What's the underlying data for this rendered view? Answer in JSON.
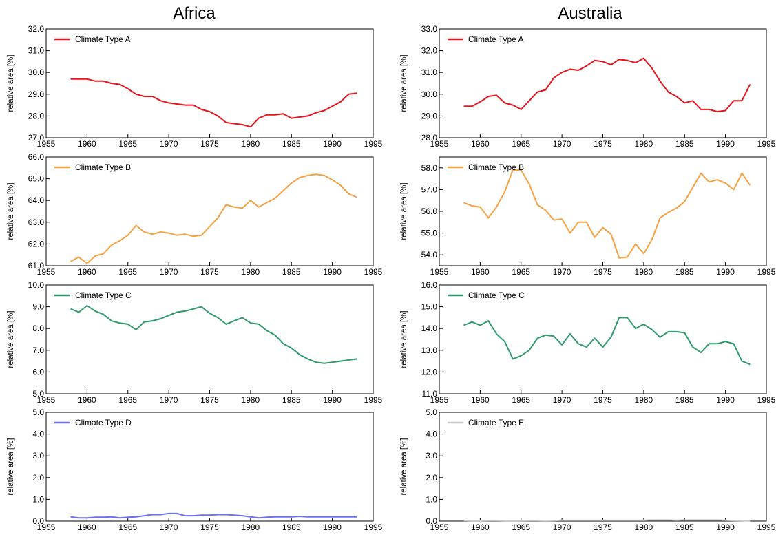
{
  "columns": [
    "Africa",
    "Australia"
  ],
  "chart_data": [
    {
      "type": "line",
      "column": 0,
      "row": 0,
      "ylabel": "relative area [%]",
      "xlim": [
        1955,
        1995
      ],
      "ylim": [
        27.0,
        32.0
      ],
      "xticks": [
        1955,
        1960,
        1965,
        1970,
        1975,
        1980,
        1985,
        1990,
        1995
      ],
      "yticks": [
        27.0,
        28.0,
        29.0,
        30.0,
        31.0,
        32.0
      ],
      "series": [
        {
          "name": "Climate Type A",
          "color": "#e8141c",
          "x": [
            1958,
            1959,
            1960,
            1961,
            1962,
            1963,
            1964,
            1965,
            1966,
            1967,
            1968,
            1969,
            1970,
            1971,
            1972,
            1973,
            1974,
            1975,
            1976,
            1977,
            1978,
            1979,
            1980,
            1981,
            1982,
            1983,
            1984,
            1985,
            1986,
            1987,
            1988,
            1989,
            1990,
            1991,
            1992,
            1993
          ],
          "y": [
            29.7,
            29.7,
            29.7,
            29.6,
            29.6,
            29.5,
            29.45,
            29.25,
            29.0,
            28.9,
            28.9,
            28.7,
            28.6,
            28.55,
            28.5,
            28.5,
            28.3,
            28.2,
            28.0,
            27.7,
            27.65,
            27.6,
            27.5,
            27.9,
            28.05,
            28.05,
            28.1,
            27.9,
            27.95,
            28.0,
            28.15,
            28.25,
            28.45,
            28.65,
            29.0,
            29.05
          ]
        }
      ]
    },
    {
      "type": "line",
      "column": 1,
      "row": 0,
      "ylabel": "relative area [%]",
      "xlim": [
        1955,
        1995
      ],
      "ylim": [
        28.0,
        33.0
      ],
      "xticks": [
        1955,
        1960,
        1965,
        1970,
        1975,
        1980,
        1985,
        1990,
        1995
      ],
      "yticks": [
        28.0,
        29.0,
        30.0,
        31.0,
        32.0,
        33.0
      ],
      "series": [
        {
          "name": "Climate Type A",
          "color": "#e8141c",
          "x": [
            1958,
            1959,
            1960,
            1961,
            1962,
            1963,
            1964,
            1965,
            1966,
            1967,
            1968,
            1969,
            1970,
            1971,
            1972,
            1973,
            1974,
            1975,
            1976,
            1977,
            1978,
            1979,
            1980,
            1981,
            1982,
            1983,
            1984,
            1985,
            1986,
            1987,
            1988,
            1989,
            1990,
            1991,
            1992,
            1993
          ],
          "y": [
            29.45,
            29.45,
            29.65,
            29.9,
            29.95,
            29.6,
            29.5,
            29.3,
            29.7,
            30.1,
            30.2,
            30.75,
            31.0,
            31.15,
            31.1,
            31.3,
            31.55,
            31.5,
            31.35,
            31.6,
            31.55,
            31.45,
            31.65,
            31.2,
            30.6,
            30.1,
            29.9,
            29.6,
            29.7,
            29.3,
            29.3,
            29.2,
            29.25,
            29.7,
            29.7,
            30.45
          ]
        }
      ]
    },
    {
      "type": "line",
      "column": 0,
      "row": 1,
      "ylabel": "relative area [%]",
      "xlim": [
        1955,
        1995
      ],
      "ylim": [
        61.0,
        66.0
      ],
      "xticks": [
        1955,
        1960,
        1965,
        1970,
        1975,
        1980,
        1985,
        1990,
        1995
      ],
      "yticks": [
        61.0,
        62.0,
        63.0,
        64.0,
        65.0,
        66.0
      ],
      "series": [
        {
          "name": "Climate Type B",
          "color": "#f5a142",
          "x": [
            1958,
            1959,
            1960,
            1961,
            1962,
            1963,
            1964,
            1965,
            1966,
            1967,
            1968,
            1969,
            1970,
            1971,
            1972,
            1973,
            1974,
            1975,
            1976,
            1977,
            1978,
            1979,
            1980,
            1981,
            1982,
            1983,
            1984,
            1985,
            1986,
            1987,
            1988,
            1989,
            1990,
            1991,
            1992,
            1993
          ],
          "y": [
            61.2,
            61.4,
            61.1,
            61.45,
            61.55,
            61.95,
            62.15,
            62.4,
            62.85,
            62.55,
            62.45,
            62.55,
            62.5,
            62.4,
            62.45,
            62.35,
            62.4,
            62.8,
            63.2,
            63.8,
            63.7,
            63.65,
            64.0,
            63.7,
            63.9,
            64.1,
            64.45,
            64.8,
            65.05,
            65.15,
            65.2,
            65.15,
            64.95,
            64.7,
            64.3,
            64.15
          ]
        }
      ]
    },
    {
      "type": "line",
      "column": 1,
      "row": 1,
      "ylabel": "relative area [%]",
      "xlim": [
        1955,
        1995
      ],
      "ylim": [
        53.5,
        58.5
      ],
      "xticks": [
        1955,
        1960,
        1965,
        1970,
        1975,
        1980,
        1985,
        1990,
        1995
      ],
      "yticks": [
        54.0,
        55.0,
        56.0,
        57.0,
        58.0
      ],
      "series": [
        {
          "name": "Climate Type B",
          "color": "#f5a142",
          "x": [
            1958,
            1959,
            1960,
            1961,
            1962,
            1963,
            1964,
            1965,
            1966,
            1967,
            1968,
            1969,
            1970,
            1971,
            1972,
            1973,
            1974,
            1975,
            1976,
            1977,
            1978,
            1979,
            1980,
            1981,
            1982,
            1983,
            1984,
            1985,
            1986,
            1987,
            1988,
            1989,
            1990,
            1991,
            1992,
            1993
          ],
          "y": [
            56.4,
            56.25,
            56.2,
            55.7,
            56.2,
            56.9,
            57.9,
            57.9,
            57.25,
            56.3,
            56.05,
            55.6,
            55.65,
            55.0,
            55.5,
            55.5,
            54.8,
            55.25,
            54.95,
            53.85,
            53.9,
            54.5,
            54.05,
            54.7,
            55.7,
            55.95,
            56.15,
            56.45,
            57.1,
            57.75,
            57.35,
            57.45,
            57.3,
            57.0,
            57.75,
            57.2
          ]
        }
      ]
    },
    {
      "type": "line",
      "column": 0,
      "row": 2,
      "ylabel": "relative area [%]",
      "xlim": [
        1955,
        1995
      ],
      "ylim": [
        5.0,
        10.0
      ],
      "xticks": [
        1955,
        1960,
        1965,
        1970,
        1975,
        1980,
        1985,
        1990,
        1995
      ],
      "yticks": [
        5.0,
        6.0,
        7.0,
        8.0,
        9.0,
        10.0
      ],
      "series": [
        {
          "name": "Climate Type C",
          "color": "#2e9a6a",
          "x": [
            1958,
            1959,
            1960,
            1961,
            1962,
            1963,
            1964,
            1965,
            1966,
            1967,
            1968,
            1969,
            1970,
            1971,
            1972,
            1973,
            1974,
            1975,
            1976,
            1977,
            1978,
            1979,
            1980,
            1981,
            1982,
            1983,
            1984,
            1985,
            1986,
            1987,
            1988,
            1989,
            1990,
            1991,
            1992,
            1993
          ],
          "y": [
            8.9,
            8.75,
            9.05,
            8.8,
            8.65,
            8.35,
            8.25,
            8.2,
            7.95,
            8.3,
            8.35,
            8.45,
            8.6,
            8.75,
            8.8,
            8.9,
            9.0,
            8.7,
            8.5,
            8.2,
            8.35,
            8.5,
            8.25,
            8.2,
            7.9,
            7.7,
            7.3,
            7.1,
            6.8,
            6.6,
            6.45,
            6.4,
            6.45,
            6.5,
            6.55,
            6.6
          ]
        }
      ]
    },
    {
      "type": "line",
      "column": 1,
      "row": 2,
      "ylabel": "relative area [%]",
      "xlim": [
        1955,
        1995
      ],
      "ylim": [
        11.0,
        16.0
      ],
      "xticks": [
        1955,
        1960,
        1965,
        1970,
        1975,
        1980,
        1985,
        1990,
        1995
      ],
      "yticks": [
        11.0,
        12.0,
        13.0,
        14.0,
        15.0,
        16.0
      ],
      "series": [
        {
          "name": "Climate Type C",
          "color": "#2e9a6a",
          "x": [
            1958,
            1959,
            1960,
            1961,
            1962,
            1963,
            1964,
            1965,
            1966,
            1967,
            1968,
            1969,
            1970,
            1971,
            1972,
            1973,
            1974,
            1975,
            1976,
            1977,
            1978,
            1979,
            1980,
            1981,
            1982,
            1983,
            1984,
            1985,
            1986,
            1987,
            1988,
            1989,
            1990,
            1991,
            1992,
            1993
          ],
          "y": [
            14.15,
            14.3,
            14.15,
            14.35,
            13.75,
            13.4,
            12.6,
            12.75,
            13.0,
            13.55,
            13.7,
            13.65,
            13.25,
            13.75,
            13.3,
            13.15,
            13.55,
            13.15,
            13.6,
            14.5,
            14.5,
            14.0,
            14.2,
            13.95,
            13.6,
            13.85,
            13.85,
            13.8,
            13.15,
            12.9,
            13.3,
            13.3,
            13.4,
            13.3,
            12.5,
            12.35
          ]
        }
      ]
    },
    {
      "type": "line",
      "column": 0,
      "row": 3,
      "ylabel": "relative area [%]",
      "xlim": [
        1955,
        1995
      ],
      "ylim": [
        0.0,
        5.0
      ],
      "xticks": [
        1955,
        1960,
        1965,
        1970,
        1975,
        1980,
        1985,
        1990,
        1995
      ],
      "yticks": [
        0.0,
        1.0,
        2.0,
        3.0,
        4.0,
        5.0
      ],
      "series": [
        {
          "name": "Climate Type D",
          "color": "#6b6ff0",
          "x": [
            1958,
            1959,
            1960,
            1961,
            1962,
            1963,
            1964,
            1965,
            1966,
            1967,
            1968,
            1969,
            1970,
            1971,
            1972,
            1973,
            1974,
            1975,
            1976,
            1977,
            1978,
            1979,
            1980,
            1981,
            1982,
            1983,
            1984,
            1985,
            1986,
            1987,
            1988,
            1989,
            1990,
            1991,
            1992,
            1993
          ],
          "y": [
            0.2,
            0.15,
            0.15,
            0.18,
            0.18,
            0.2,
            0.15,
            0.18,
            0.2,
            0.25,
            0.3,
            0.3,
            0.35,
            0.35,
            0.25,
            0.25,
            0.28,
            0.28,
            0.3,
            0.3,
            0.28,
            0.25,
            0.2,
            0.15,
            0.18,
            0.2,
            0.2,
            0.2,
            0.22,
            0.2,
            0.2,
            0.2,
            0.2,
            0.2,
            0.2,
            0.2
          ]
        }
      ]
    },
    {
      "type": "line",
      "column": 1,
      "row": 3,
      "ylabel": "relative area [%]",
      "xlim": [
        1955,
        1995
      ],
      "ylim": [
        0.0,
        5.0
      ],
      "xticks": [
        1955,
        1960,
        1965,
        1970,
        1975,
        1980,
        1985,
        1990,
        1995
      ],
      "yticks": [
        0.0,
        1.0,
        2.0,
        3.0,
        4.0,
        5.0
      ],
      "series": [
        {
          "name": "Climate Type E",
          "color": "#c8c8c8",
          "x": [
            1958,
            1959,
            1960,
            1961,
            1962,
            1963,
            1964,
            1965,
            1966,
            1967,
            1968,
            1969,
            1970,
            1971,
            1972,
            1973,
            1974,
            1975,
            1976,
            1977,
            1978,
            1979,
            1980,
            1981,
            1982,
            1983,
            1984,
            1985,
            1986,
            1987,
            1988,
            1989,
            1990,
            1991,
            1992,
            1993
          ],
          "y": [
            0.03,
            0.02,
            0.02,
            0.03,
            0.03,
            0.02,
            0.02,
            0.02,
            0.03,
            0.03,
            0.02,
            0.03,
            0.04,
            0.04,
            0.04,
            0.04,
            0.04,
            0.04,
            0.04,
            0.04,
            0.04,
            0.04,
            0.04,
            0.05,
            0.05,
            0.05,
            0.04,
            0.05,
            0.05,
            0.05,
            0.05,
            0.05,
            0.04,
            0.03,
            0.02,
            0.01
          ]
        }
      ]
    }
  ]
}
